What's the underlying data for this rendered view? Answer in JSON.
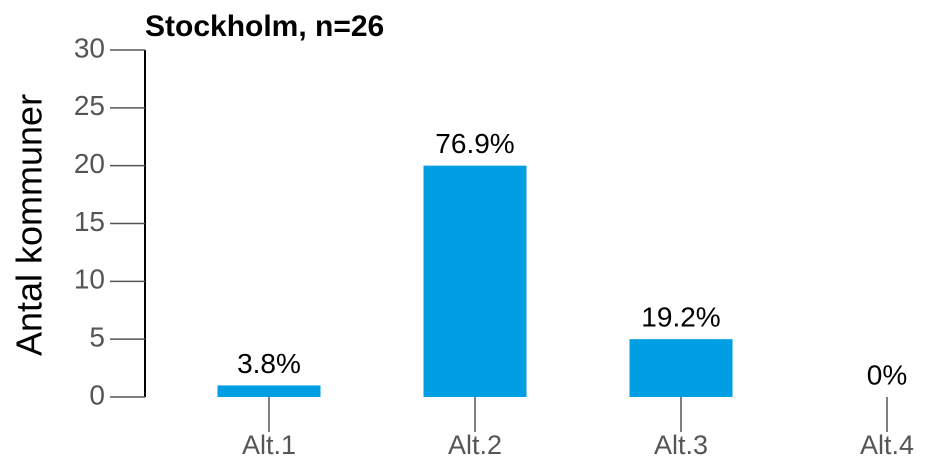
{
  "chart_data": {
    "type": "bar",
    "title": "Stockholm, n=26",
    "y_label": "Antal kommuner",
    "categories": [
      "Alt.1",
      "Alt.2",
      "Alt.3",
      "Alt.4"
    ],
    "values": [
      1,
      20,
      5,
      0
    ],
    "value_labels": [
      "3.8%",
      "76.9%",
      "19.2%",
      "0%"
    ],
    "color": "#009fe3",
    "ylim": [
      0,
      30
    ],
    "yticks": [
      0,
      5,
      10,
      15,
      20,
      25,
      30
    ],
    "grid": false
  }
}
